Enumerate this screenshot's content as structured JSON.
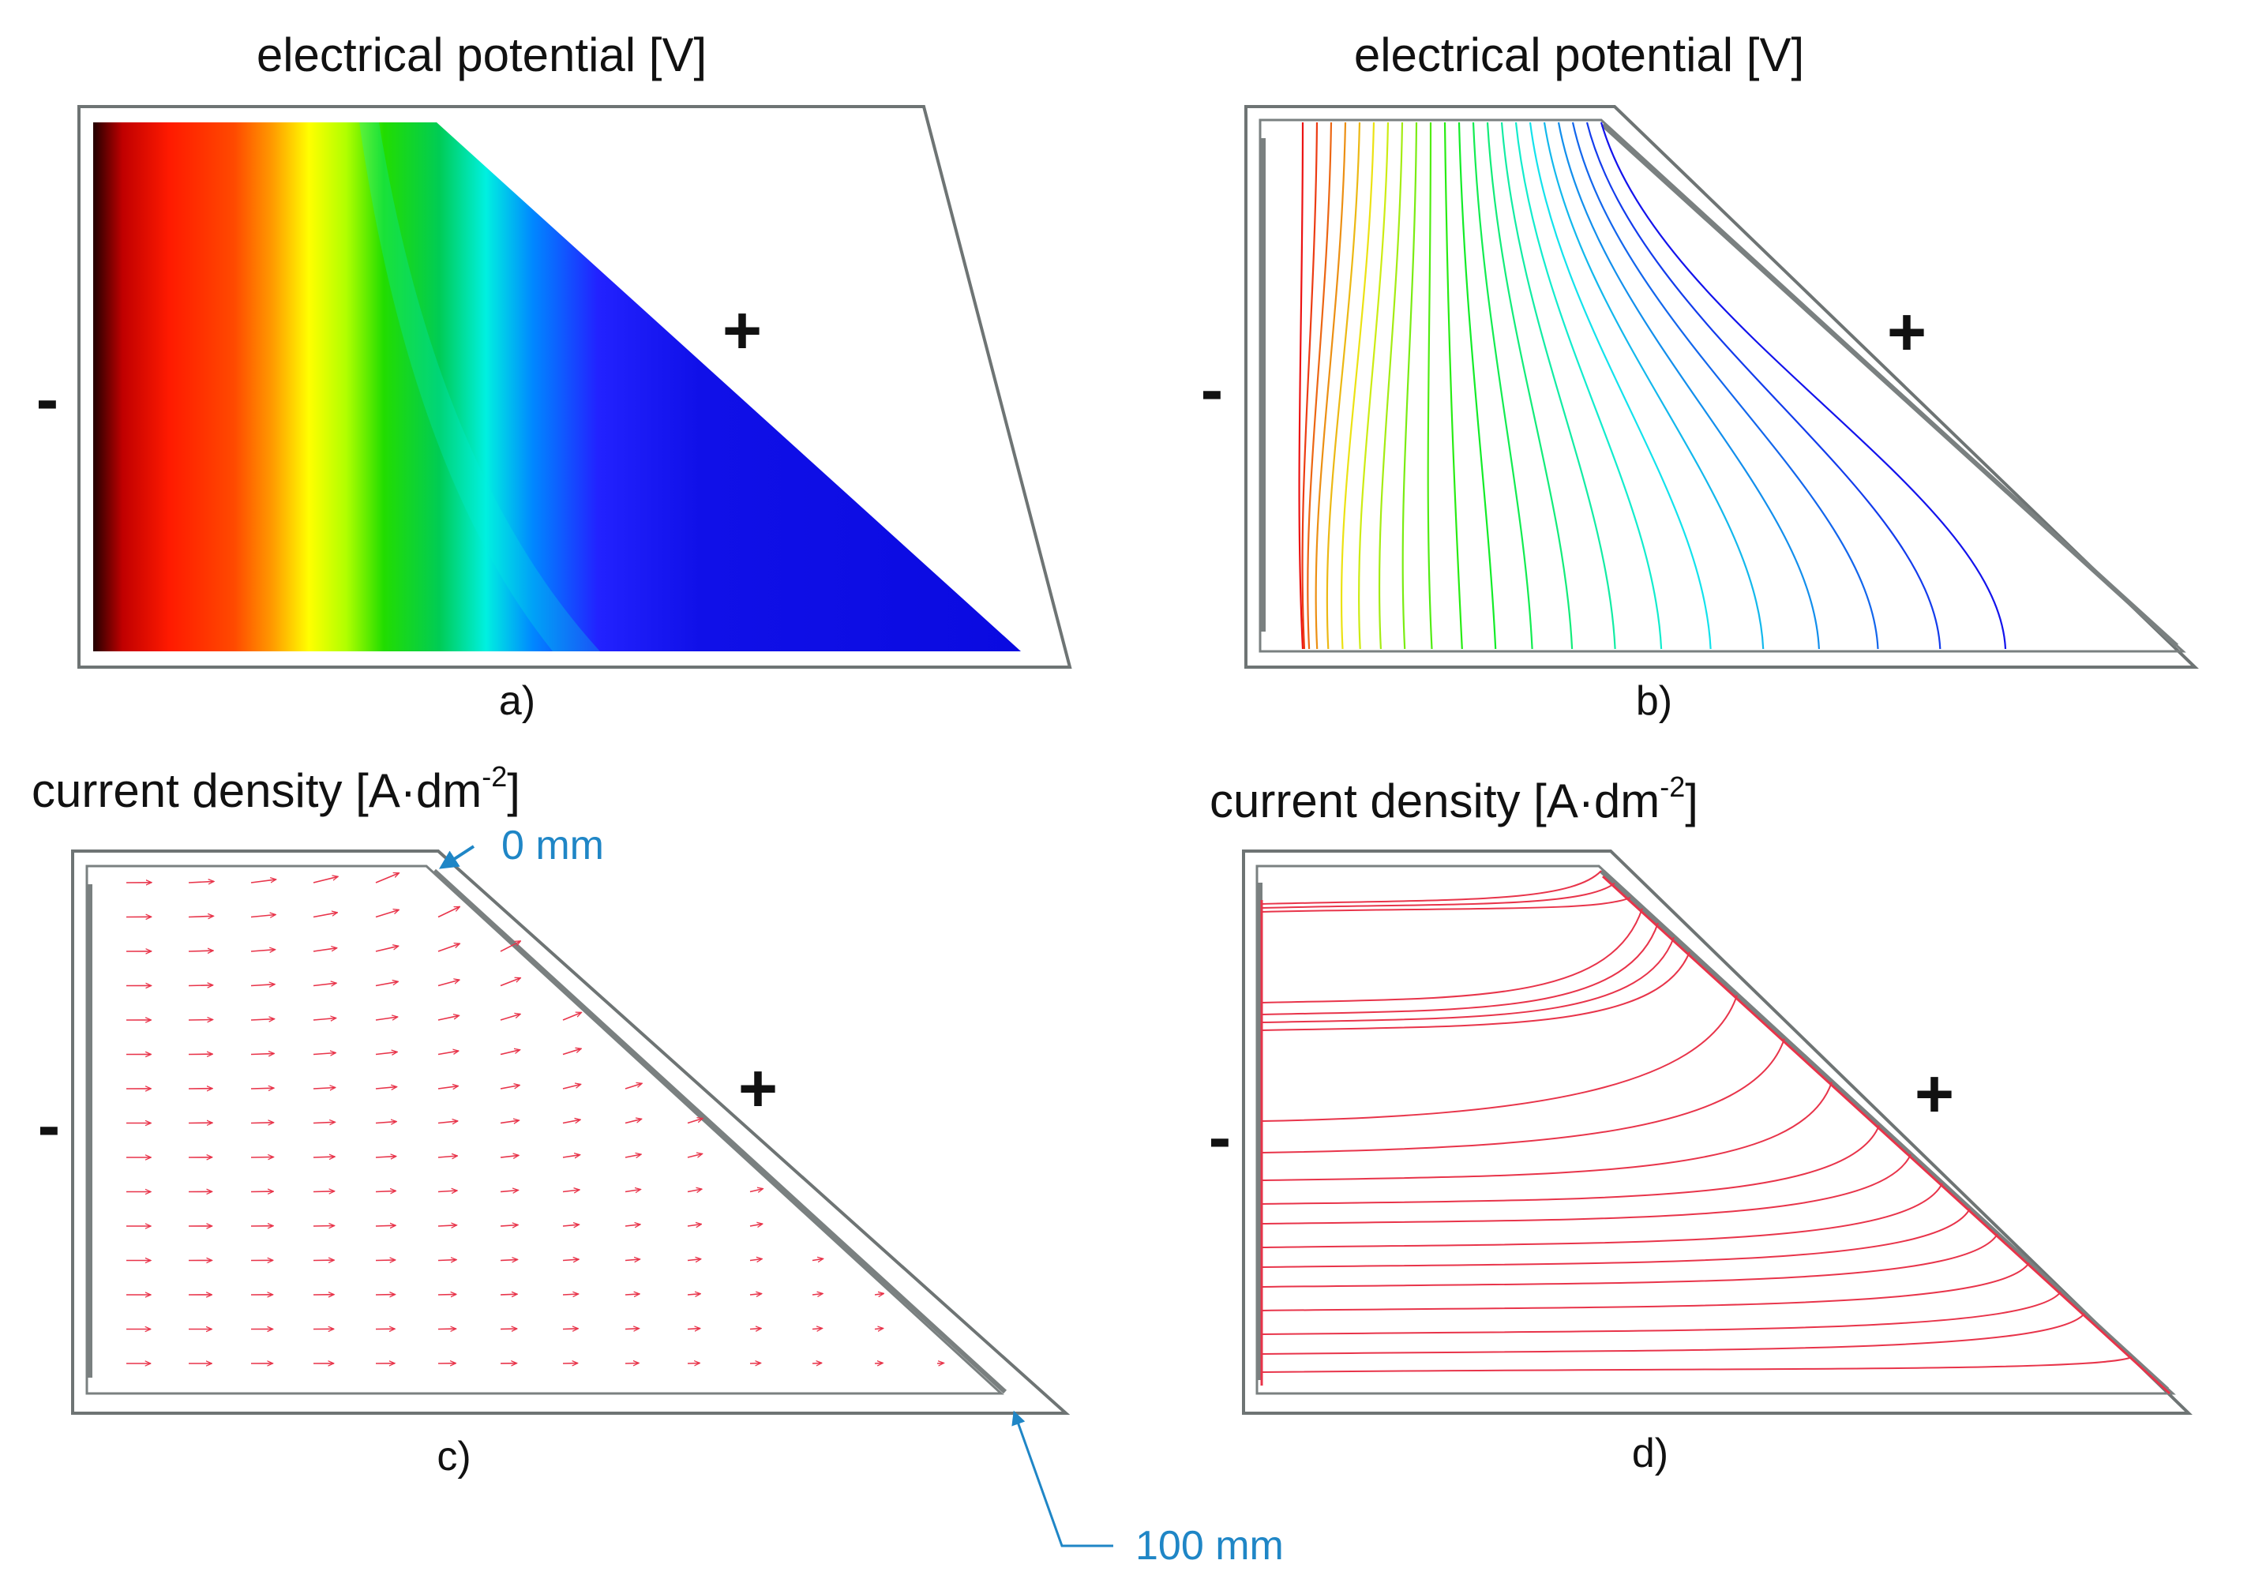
{
  "panels": {
    "a": {
      "title": "electrical potential [V]",
      "cathode_sign": "-",
      "anode_sign": "+",
      "caption": "a)"
    },
    "b": {
      "title": "electrical potential [V]",
      "cathode_sign": "-",
      "anode_sign": "+",
      "caption": "b)"
    },
    "c": {
      "title_main": "current density [A·dm",
      "title_sup": "-2",
      "title_end": "]",
      "cathode_sign": "-",
      "anode_sign": "+",
      "caption": "c)"
    },
    "d": {
      "title_main": "current density [A·dm",
      "title_sup": "-2",
      "title_end": "]",
      "cathode_sign": "-",
      "anode_sign": "+",
      "caption": "d)"
    }
  },
  "anode_scale": {
    "start_label": "0 mm",
    "end_label": "100 mm"
  },
  "colors": {
    "accent": "#1f86c6",
    "field_line": "#e8344a",
    "frame": "#6e7474"
  }
}
